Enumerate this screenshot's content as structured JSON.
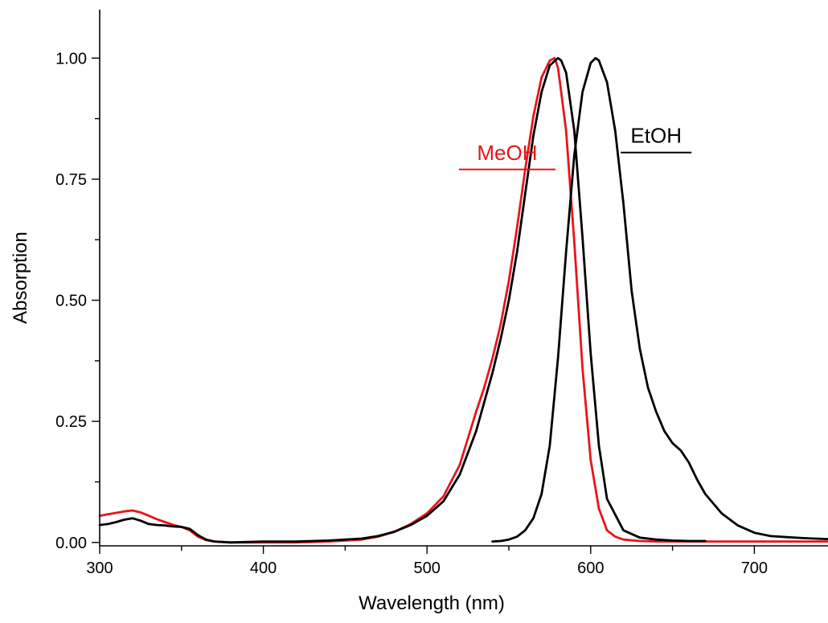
{
  "chart_data": {
    "type": "line",
    "title": "",
    "xlabel": "Wavelength (nm)",
    "ylabel": "Absorption",
    "xlim": [
      300,
      745
    ],
    "ylim": [
      -0.007,
      1.1
    ],
    "x_ticks": [
      300,
      400,
      500,
      600,
      700
    ],
    "x_tick_labels": [
      "300",
      "400",
      "500",
      "600",
      "700"
    ],
    "x_minor_ticks": [
      350,
      450,
      550,
      650
    ],
    "y_ticks": [
      0.0,
      0.25,
      0.5,
      0.75,
      1.0
    ],
    "y_tick_labels": [
      "0.00",
      "0.25",
      "0.50",
      "0.75",
      "1.00"
    ],
    "y_minor_ticks": [
      0.125,
      0.375,
      0.625,
      0.875
    ],
    "grid": false,
    "annotations": [
      {
        "text": "MeOH",
        "color": "#e8141b"
      },
      {
        "text": "EtOH",
        "color": "#000000"
      }
    ],
    "series": [
      {
        "color": "#e8141b",
        "x": [
          300,
          305,
          310,
          315,
          320,
          325,
          330,
          335,
          340,
          345,
          350,
          355,
          360,
          365,
          370,
          380,
          400,
          420,
          440,
          460,
          470,
          480,
          490,
          500,
          510,
          520,
          530,
          535,
          540,
          545,
          550,
          555,
          560,
          565,
          570,
          575,
          578,
          580,
          582,
          585,
          590,
          595,
          600,
          605,
          610,
          615,
          620,
          630,
          640,
          650,
          660,
          680,
          700,
          720,
          745
        ],
        "y": [
          0.055,
          0.058,
          0.061,
          0.064,
          0.066,
          0.062,
          0.055,
          0.048,
          0.042,
          0.036,
          0.032,
          0.025,
          0.012,
          0.005,
          0.002,
          0.0,
          0.0,
          0.0,
          0.002,
          0.006,
          0.012,
          0.022,
          0.038,
          0.06,
          0.095,
          0.16,
          0.27,
          0.32,
          0.38,
          0.45,
          0.54,
          0.65,
          0.77,
          0.88,
          0.96,
          0.995,
          1.0,
          0.98,
          0.93,
          0.85,
          0.62,
          0.36,
          0.17,
          0.07,
          0.025,
          0.012,
          0.006,
          0.003,
          0.002,
          0.002,
          0.002,
          0.002,
          0.002,
          0.002,
          0.002
        ]
      },
      {
        "color": "#000000",
        "x": [
          300,
          305,
          310,
          315,
          320,
          325,
          330,
          335,
          340,
          345,
          350,
          355,
          360,
          365,
          370,
          380,
          400,
          420,
          440,
          460,
          470,
          480,
          490,
          500,
          510,
          520,
          530,
          540,
          545,
          550,
          555,
          560,
          565,
          570,
          575,
          580,
          582,
          585,
          590,
          595,
          600,
          605,
          610,
          620,
          630,
          640,
          650,
          660,
          670
        ],
        "y": [
          0.036,
          0.038,
          0.042,
          0.047,
          0.05,
          0.045,
          0.038,
          0.036,
          0.035,
          0.033,
          0.032,
          0.028,
          0.015,
          0.006,
          0.002,
          0.0,
          0.002,
          0.002,
          0.004,
          0.008,
          0.013,
          0.022,
          0.036,
          0.055,
          0.085,
          0.14,
          0.23,
          0.35,
          0.42,
          0.5,
          0.6,
          0.72,
          0.84,
          0.93,
          0.985,
          1.0,
          0.995,
          0.97,
          0.85,
          0.63,
          0.39,
          0.2,
          0.09,
          0.025,
          0.01,
          0.006,
          0.004,
          0.003,
          0.003
        ]
      },
      {
        "color": "#000000",
        "x": [
          540,
          545,
          550,
          555,
          560,
          565,
          570,
          575,
          580,
          585,
          590,
          595,
          600,
          603,
          605,
          610,
          615,
          620,
          625,
          630,
          635,
          640,
          645,
          650,
          655,
          660,
          665,
          670,
          680,
          690,
          700,
          710,
          720,
          730,
          745
        ],
        "y": [
          0.002,
          0.003,
          0.006,
          0.012,
          0.025,
          0.05,
          0.1,
          0.2,
          0.38,
          0.6,
          0.8,
          0.93,
          0.99,
          1.0,
          0.995,
          0.95,
          0.85,
          0.7,
          0.52,
          0.4,
          0.32,
          0.27,
          0.23,
          0.205,
          0.19,
          0.165,
          0.13,
          0.1,
          0.06,
          0.035,
          0.02,
          0.013,
          0.011,
          0.009,
          0.007
        ]
      }
    ]
  }
}
